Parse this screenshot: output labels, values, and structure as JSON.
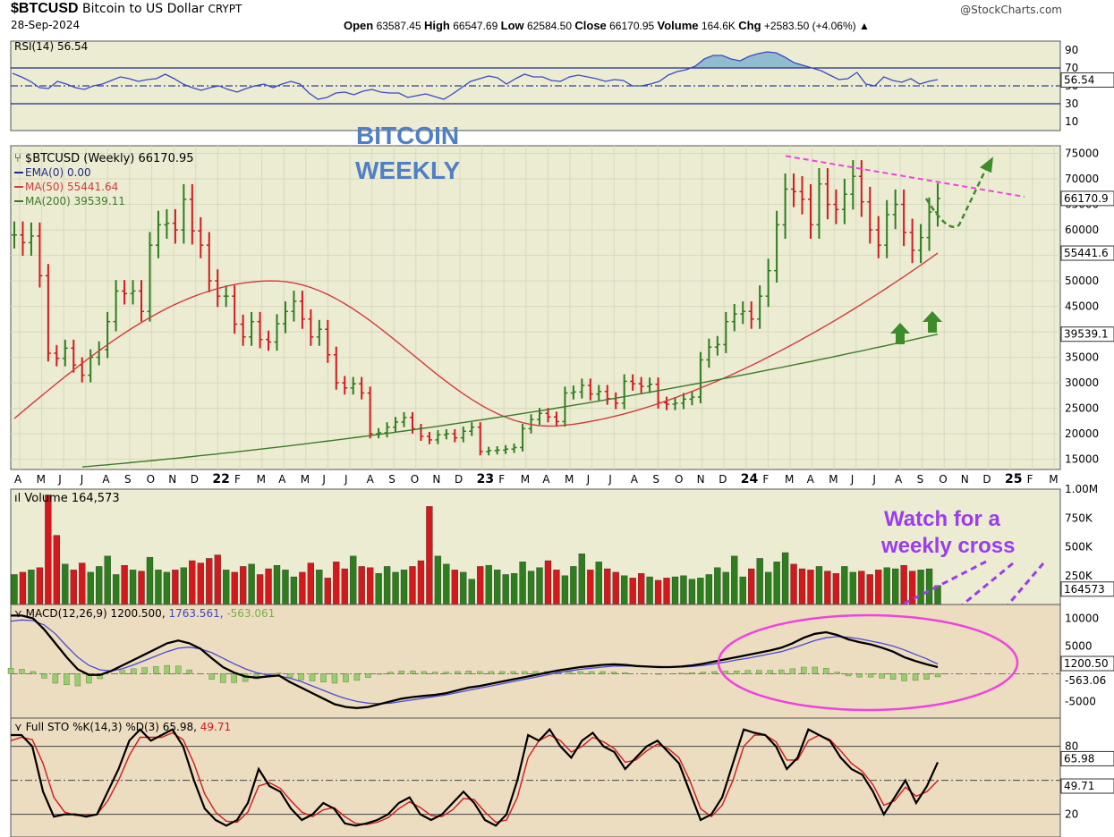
{
  "header": {
    "symbol": "$BTCUSD",
    "name": "Bitcoin to US Dollar",
    "exchange": "CRYPT",
    "date": "28-Sep-2024",
    "brand": "@StockCharts.com",
    "open_label": "Open",
    "open": "63587.45",
    "high_label": "High",
    "high": "66547.69",
    "low_label": "Low",
    "low": "62584.50",
    "close_label": "Close",
    "close": "66170.95",
    "volume_label": "Volume",
    "volume": "164.6K",
    "chg_label": "Chg",
    "chg": "+2583.50 (+4.06%)",
    "chg_arrow": "▲"
  },
  "colors": {
    "panel_bg": "#ececd2",
    "up": "#2e7d1e",
    "down": "#d2191e",
    "ma50": "#d23c3c",
    "ma200": "#3c7a28",
    "rsi": "#3b49c6",
    "trend": "#ee44dd",
    "annot": "#9b3cf0",
    "note_blue": "#4f7fc6"
  },
  "chart_data": [
    {
      "type": "line",
      "panel": "rsi",
      "legend": "RSI(14) 56.54",
      "last_label": "56.54",
      "ylim": [
        0,
        100
      ],
      "yticks": [
        90,
        70,
        50,
        30,
        10
      ],
      "ytick_labels": [
        "90",
        "70",
        "50",
        "30",
        "10"
      ],
      "reference_lines": [
        70,
        50,
        30
      ],
      "values": [
        64,
        60,
        55,
        48,
        47,
        55,
        52,
        48,
        46,
        50,
        52,
        56,
        60,
        58,
        55,
        57,
        58,
        63,
        58,
        52,
        48,
        45,
        48,
        50,
        46,
        43,
        47,
        50,
        52,
        48,
        52,
        55,
        52,
        42,
        35,
        37,
        42,
        43,
        40,
        44,
        46,
        43,
        42,
        42,
        37,
        39,
        41,
        38,
        35,
        41,
        48,
        55,
        58,
        61,
        59,
        52,
        58,
        63,
        60,
        60,
        56,
        55,
        60,
        62,
        60,
        58,
        55,
        57,
        56,
        50,
        50,
        52,
        55,
        62,
        66,
        68,
        72,
        80,
        84,
        84,
        80,
        78,
        83,
        86,
        88,
        87,
        82,
        76,
        73,
        70,
        67,
        62,
        57,
        58,
        65,
        52,
        50,
        60,
        56,
        54,
        58,
        52,
        55,
        57
      ]
    },
    {
      "type": "bar",
      "panel": "price",
      "title": "$BTCUSD (Weekly) 66170.95",
      "legend": [
        "EMA(0) 0.00",
        "MA(50) 55441.64",
        "MA(200) 39539.11"
      ],
      "annotation": [
        "BITCOIN",
        "WEEKLY"
      ],
      "right_labels": [
        "66170.9",
        "55441.6",
        "39539.1"
      ],
      "ylim": [
        13000,
        76500
      ],
      "yticks": [
        75000,
        70000,
        65000,
        60000,
        55000,
        50000,
        45000,
        40000,
        35000,
        30000,
        25000,
        20000,
        15000
      ],
      "ytick_labels": [
        "75000",
        "70000",
        "65000",
        "60000",
        "55000",
        "50000",
        "45000",
        "40000",
        "35000",
        "30000",
        "25000",
        "20000",
        "15000"
      ],
      "x_labels": [
        "A",
        "M",
        "J",
        "J",
        "A",
        "S",
        "O",
        "N",
        "D",
        "22",
        "F",
        "M",
        "A",
        "M",
        "J",
        "J",
        "A",
        "S",
        "O",
        "N",
        "D",
        "23",
        "F",
        "M",
        "A",
        "M",
        "J",
        "J",
        "A",
        "S",
        "O",
        "N",
        "D",
        "24",
        "F",
        "M",
        "A",
        "M",
        "J",
        "J",
        "A",
        "S",
        "O",
        "N",
        "D",
        "25",
        "F",
        "M"
      ],
      "close": [
        59000,
        57500,
        58800,
        51000,
        35800,
        34800,
        36800,
        33500,
        31500,
        35000,
        36500,
        42000,
        48000,
        47500,
        48000,
        44000,
        57000,
        61000,
        61300,
        60000,
        66000,
        59800,
        57000,
        50000,
        47000,
        47000,
        41500,
        39000,
        42000,
        38500,
        38000,
        41600,
        44000,
        46000,
        42500,
        39000,
        40500,
        35500,
        30000,
        29000,
        29800,
        28000,
        20000,
        20200,
        21300,
        22300,
        23200,
        21000,
        19500,
        18800,
        19800,
        20000,
        19200,
        20500,
        21300,
        16500,
        16700,
        16800,
        17000,
        17300,
        21000,
        22800,
        24000,
        23300,
        22400,
        28000,
        28200,
        29500,
        27800,
        28300,
        26900,
        26000,
        30300,
        29800,
        29300,
        29700,
        26100,
        25800,
        26000,
        26800,
        27200,
        34500,
        37000,
        37500,
        42000,
        43500,
        44000,
        42500,
        47000,
        52000,
        61000,
        68000,
        67500,
        66000,
        61000,
        69000,
        65000,
        64000,
        67000,
        70500,
        65500,
        60000,
        57000,
        63000,
        65000,
        59500,
        56000,
        58500,
        63500,
        66170.95
      ],
      "ma50_start": 23000,
      "ma50_peak": 50000,
      "ma50_trough": 21500,
      "ma50_end": 55441.64,
      "ma200_start": 13500,
      "ma200_end": 39539.11,
      "trendline": [
        74500,
        66500
      ],
      "projection": [
        66170.95,
        61000,
        74000
      ]
    },
    {
      "type": "bar",
      "panel": "volume",
      "legend": "Volume 164,573",
      "last_label": "164573",
      "ylim": [
        0,
        1000000
      ],
      "yticks": [
        1000000,
        750000,
        500000,
        250000
      ],
      "ytick_labels": [
        "1.00M",
        "750K",
        "500K",
        "250K"
      ],
      "annotation": [
        "Watch for a",
        "weekly cross"
      ],
      "values": [
        260000,
        280000,
        300000,
        320000,
        950000,
        600000,
        350000,
        300000,
        360000,
        280000,
        330000,
        420000,
        260000,
        340000,
        300000,
        290000,
        410000,
        300000,
        280000,
        300000,
        320000,
        380000,
        360000,
        400000,
        430000,
        300000,
        280000,
        330000,
        350000,
        260000,
        310000,
        340000,
        300000,
        240000,
        280000,
        360000,
        300000,
        230000,
        370000,
        310000,
        420000,
        330000,
        320000,
        270000,
        330000,
        280000,
        300000,
        330000,
        380000,
        850000,
        420000,
        350000,
        300000,
        280000,
        220000,
        330000,
        340000,
        300000,
        260000,
        270000,
        370000,
        290000,
        320000,
        380000,
        300000,
        250000,
        330000,
        440000,
        300000,
        370000,
        310000,
        280000,
        250000,
        230000,
        270000,
        240000,
        210000,
        230000,
        240000,
        250000,
        220000,
        230000,
        260000,
        320000,
        280000,
        420000,
        240000,
        310000,
        400000,
        280000,
        370000,
        450000,
        350000,
        310000,
        300000,
        330000,
        290000,
        270000,
        330000,
        280000,
        290000,
        260000,
        300000,
        320000,
        310000,
        340000,
        290000,
        300000,
        310000,
        164573
      ]
    },
    {
      "type": "line",
      "panel": "macd",
      "legend": "MACD(12,26,9)",
      "macd_value": "1200.500",
      "signal_value": "1763.561",
      "hist_value": "-563.061",
      "right_labels": [
        "1200.50",
        "-563.06"
      ],
      "ylim": [
        -8000,
        12500
      ],
      "yticks": [
        10000,
        5000,
        -5000
      ],
      "ytick_labels": [
        "10000",
        "5000",
        "-5000"
      ],
      "macd": [
        10500,
        10500,
        10000,
        8000,
        5500,
        3000,
        800,
        -200,
        -200,
        500,
        1500,
        2500,
        3500,
        4500,
        5500,
        6000,
        5500,
        4500,
        2800,
        1200,
        200,
        -500,
        -700,
        -500,
        -300,
        -1500,
        -2500,
        -3500,
        -4500,
        -5500,
        -6000,
        -6200,
        -6000,
        -5500,
        -5000,
        -4500,
        -4200,
        -4000,
        -3800,
        -3500,
        -3000,
        -2500,
        -2200,
        -1800,
        -1400,
        -1000,
        -600,
        -200,
        200,
        600,
        900,
        1200,
        1400,
        1600,
        1700,
        1600,
        1400,
        1300,
        1200,
        1200,
        1300,
        1500,
        1800,
        2200,
        2600,
        3000,
        3400,
        3800,
        4200,
        4700,
        5500,
        6500,
        7200,
        7500,
        7000,
        6200,
        5700,
        5300,
        4700,
        4000,
        3000,
        2300,
        1700,
        1200.5
      ],
      "signal": [
        9500,
        9700,
        9600,
        8800,
        7200,
        5000,
        3000,
        1500,
        700,
        500,
        900,
        1600,
        2400,
        3200,
        4000,
        4600,
        4800,
        4500,
        3800,
        2800,
        1800,
        900,
        200,
        -200,
        -400,
        -800,
        -1400,
        -2200,
        -3000,
        -3800,
        -4500,
        -5000,
        -5300,
        -5400,
        -5300,
        -5000,
        -4700,
        -4400,
        -4100,
        -3800,
        -3400,
        -3000,
        -2600,
        -2200,
        -1800,
        -1400,
        -1000,
        -600,
        -200,
        200,
        500,
        800,
        1000,
        1200,
        1400,
        1400,
        1400,
        1300,
        1300,
        1200,
        1200,
        1300,
        1500,
        1800,
        2100,
        2500,
        2800,
        3200,
        3600,
        4000,
        4600,
        5300,
        6000,
        6500,
        6700,
        6600,
        6300,
        5900,
        5500,
        5000,
        4300,
        3500,
        2700,
        1763.561
      ]
    },
    {
      "type": "line",
      "panel": "stochastic",
      "legend": "Full STO %K(14,3) %D(3) 65.98,",
      "pctd_value": "49.71",
      "right_labels": [
        "65.98",
        "49.71"
      ],
      "ylim": [
        0,
        105
      ],
      "yticks": [
        80,
        20
      ],
      "ytick_labels": [
        "80",
        "20"
      ],
      "reference_lines": [
        80,
        50,
        20
      ],
      "k": [
        90,
        90,
        80,
        40,
        18,
        20,
        20,
        18,
        20,
        40,
        60,
        85,
        95,
        85,
        90,
        95,
        80,
        50,
        25,
        15,
        10,
        15,
        30,
        60,
        45,
        40,
        25,
        15,
        20,
        30,
        25,
        12,
        10,
        12,
        15,
        20,
        30,
        35,
        20,
        15,
        20,
        30,
        40,
        30,
        15,
        10,
        20,
        50,
        90,
        85,
        95,
        80,
        70,
        85,
        92,
        80,
        75,
        60,
        70,
        80,
        85,
        75,
        65,
        40,
        15,
        20,
        35,
        65,
        95,
        92,
        90,
        80,
        60,
        70,
        95,
        90,
        85,
        70,
        60,
        55,
        40,
        20,
        35,
        50,
        30,
        45,
        65.98
      ],
      "d": [
        85,
        88,
        86,
        65,
        35,
        22,
        19,
        19,
        20,
        32,
        50,
        72,
        88,
        88,
        88,
        92,
        86,
        65,
        38,
        22,
        14,
        13,
        22,
        45,
        48,
        43,
        32,
        22,
        18,
        24,
        26,
        18,
        12,
        11,
        13,
        17,
        25,
        31,
        26,
        19,
        18,
        24,
        34,
        33,
        22,
        13,
        15,
        35,
        70,
        85,
        90,
        85,
        75,
        80,
        88,
        84,
        78,
        66,
        68,
        76,
        82,
        78,
        70,
        50,
        25,
        18,
        28,
        50,
        80,
        90,
        90,
        84,
        68,
        68,
        85,
        90,
        86,
        76,
        65,
        58,
        46,
        28,
        32,
        44,
        36,
        40,
        49.71
      ]
    }
  ]
}
